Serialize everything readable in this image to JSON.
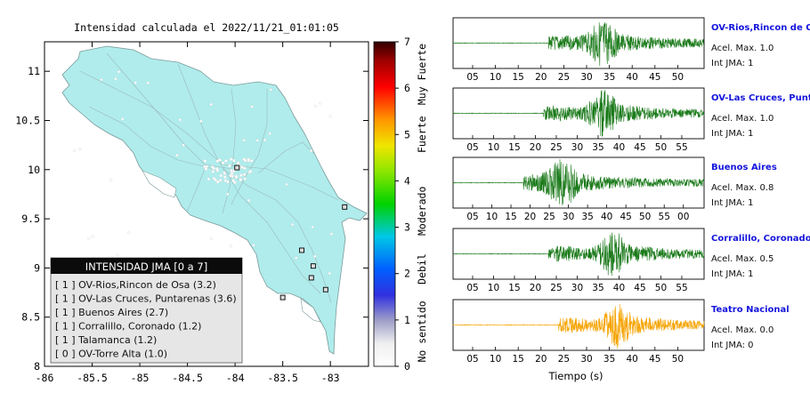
{
  "map": {
    "title": "Intensidad calculada el 2022/11/21_01:01:05",
    "lon_ticks": [
      "-86",
      "-85.5",
      "-85",
      "-84.5",
      "-84",
      "-83.5",
      "-83"
    ],
    "lat_ticks": [
      "11",
      "10.5",
      "10",
      "9.5",
      "9",
      "8.5",
      "8"
    ],
    "colorbar": {
      "ticks": [
        "0",
        "1",
        "2",
        "3",
        "4",
        "5",
        "6",
        "7"
      ],
      "bands": [
        "No sentido",
        "Debil",
        "Moderado",
        "Fuerte",
        "Muy Fuerte"
      ]
    },
    "legend": {
      "header": "INTENSIDAD JMA [0 a 7]",
      "items": [
        "[ 1 ]  OV-Rios,Rincon de Osa (3.2)",
        "[ 1 ]  OV-Las Cruces, Puntarenas (3.6)",
        "[ 1 ]  Buenos Aires (2.7)",
        "[ 1 ]  Corralillo, Coronado (1.2)",
        "[ 1 ]  Talamanca (1.2)",
        "[ 0 ]  OV-Torre Alta (1.0)"
      ]
    }
  },
  "waveforms": {
    "xlabel": "Tiempo (s)",
    "panels": [
      {
        "station": "OV-Rios,Rincon de Osa",
        "acel": "Acel. Max. 1.0",
        "int": "Int JMA: 1",
        "color": "#1a7a1a",
        "ticks": [
          "05",
          "10",
          "15",
          "20",
          "25",
          "30",
          "35",
          "40",
          "45",
          "50"
        ],
        "onset": 0.38,
        "peak": 0.6
      },
      {
        "station": "OV-Las Cruces, Puntarenas",
        "acel": "Acel. Max. 1.0",
        "int": "Int JMA: 1",
        "color": "#1a7a1a",
        "ticks": [
          "05",
          "10",
          "15",
          "20",
          "25",
          "30",
          "35",
          "40",
          "45",
          "50",
          "55"
        ],
        "onset": 0.36,
        "peak": 0.6
      },
      {
        "station": "Buenos Aires",
        "acel": "Acel. Max. 0.8",
        "int": "Int JMA: 1",
        "color": "#1a7a1a",
        "ticks": [
          "05",
          "10",
          "15",
          "20",
          "25",
          "30",
          "35",
          "40",
          "45",
          "50",
          "55",
          "00"
        ],
        "onset": 0.28,
        "peak": 0.44
      },
      {
        "station": "Corralillo, Coronado",
        "acel": "Acel. Max. 0.5",
        "int": "Int JMA: 1",
        "color": "#1a7a1a",
        "ticks": [
          "05",
          "10",
          "15",
          "20",
          "25",
          "30",
          "35",
          "40",
          "45",
          "50",
          "55"
        ],
        "onset": 0.38,
        "peak": 0.64
      },
      {
        "station": "Teatro Nacional",
        "acel": "Acel. Max. 0.0",
        "int": "Int JMA: 0",
        "color": "#f5a300",
        "ticks": [
          "05",
          "10",
          "15",
          "20",
          "25",
          "30",
          "35",
          "40",
          "45",
          "50"
        ],
        "onset": 0.42,
        "peak": 0.66
      }
    ]
  },
  "chart_data": {
    "type": "scatter",
    "title": "Intensidad calculada el 2022/11/21_01:01:05",
    "xlim": [
      -86,
      -82.6
    ],
    "ylim": [
      8,
      11.3
    ],
    "stations": [
      {
        "name": "OV-Rios,Rincon de Osa",
        "lon": -83.5,
        "lat": 8.7,
        "jma": 1
      },
      {
        "name": "Talamanca",
        "lon": -83.05,
        "lat": 8.78,
        "jma": 1
      },
      {
        "name": "OV-Las Cruces, Puntarenas",
        "lon": -83.2,
        "lat": 8.9,
        "jma": 1
      },
      {
        "name": "Buenos Aires",
        "lon": -83.18,
        "lat": 9.02,
        "jma": 1
      },
      {
        "name": "Corralillo, Coronado",
        "lon": -83.3,
        "lat": 9.18,
        "jma": 1
      },
      {
        "name": "OV-Torre Alta",
        "lon": -82.85,
        "lat": 9.62,
        "jma": 0
      },
      {
        "name": "Teatro Nacional",
        "lon": -83.98,
        "lat": 10.02,
        "jma": 0
      }
    ],
    "colorbar_range": [
      0,
      7
    ]
  }
}
